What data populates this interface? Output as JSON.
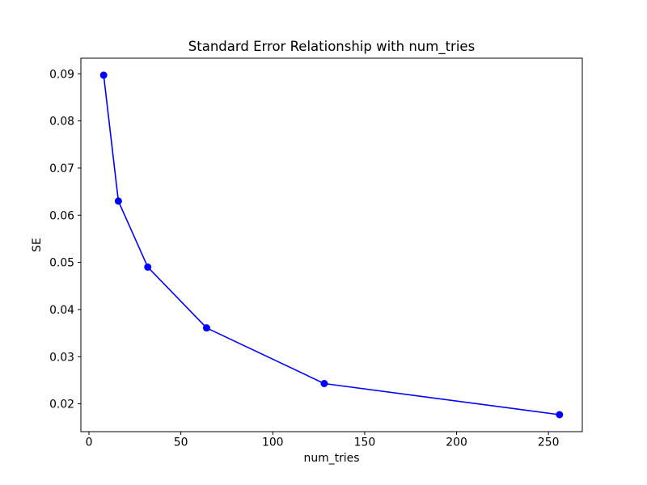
{
  "chart_data": {
    "type": "line",
    "title": "Standard Error Relationship with num_tries",
    "xlabel": "num_tries",
    "ylabel": "SE",
    "series": [
      {
        "name": "SE",
        "x": [
          8,
          16,
          32,
          64,
          128,
          256
        ],
        "y": [
          0.0897,
          0.063,
          0.049,
          0.0361,
          0.0243,
          0.0177
        ]
      }
    ],
    "line_color": "#0000ff",
    "marker": "circle",
    "marker_color": "#0000ff",
    "background": "#ffffff",
    "grid": false,
    "legend": false,
    "xlim": [
      -4.4,
      268.4
    ],
    "ylim": [
      0.0141,
      0.0933
    ],
    "xtick_values": [
      0,
      50,
      100,
      150,
      200,
      250
    ],
    "xtick_labels": [
      "0",
      "50",
      "100",
      "150",
      "200",
      "250"
    ],
    "ytick_values": [
      0.02,
      0.03,
      0.04,
      0.05,
      0.06,
      0.07,
      0.08,
      0.09
    ],
    "ytick_labels": [
      "0.02",
      "0.03",
      "0.04",
      "0.05",
      "0.06",
      "0.07",
      "0.08",
      "0.09"
    ]
  }
}
